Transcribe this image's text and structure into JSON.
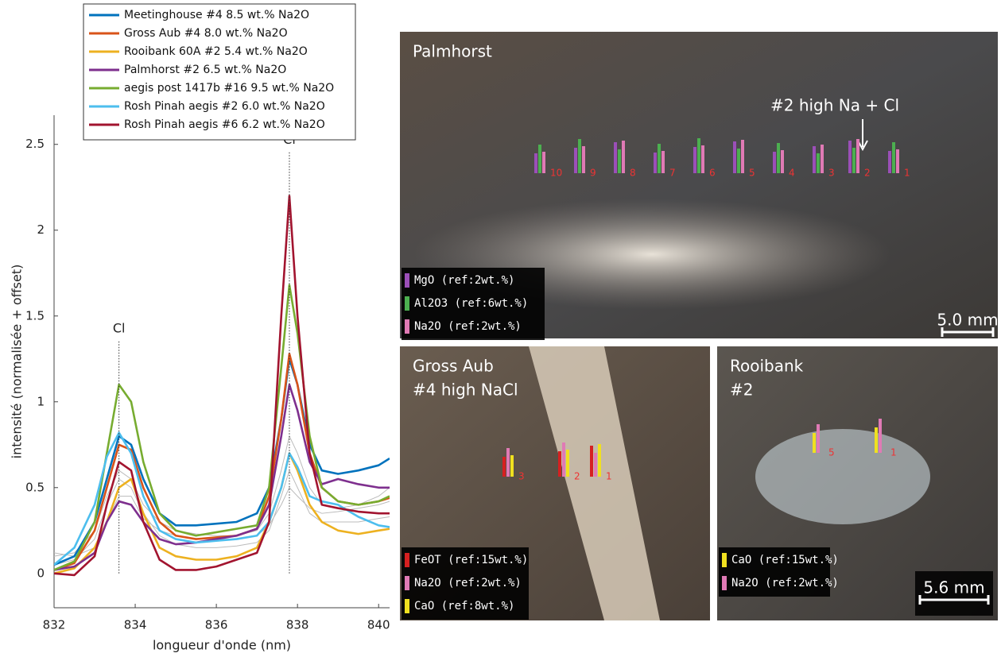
{
  "chart_data": {
    "type": "line",
    "xlabel": "longueur d'onde (nm)",
    "ylabel": "intensité (normalisée + offset)",
    "xlim": [
      832,
      840.27
    ],
    "ylim": [
      -0.2,
      2.67
    ],
    "xticks": [
      832,
      834,
      836,
      838,
      840
    ],
    "yticks": [
      0,
      0.5,
      1,
      1.5,
      2,
      2.5
    ],
    "x": [
      832,
      832.5,
      833,
      833.3,
      833.6,
      833.9,
      834.2,
      834.6,
      835,
      835.5,
      836,
      836.5,
      837,
      837.3,
      837.6,
      837.8,
      838,
      838.3,
      838.6,
      839,
      839.5,
      840,
      840.27
    ],
    "annotations": [
      {
        "text": "Cl",
        "x": 833.6
      },
      {
        "text": "Cl",
        "x": 837.8
      }
    ],
    "series": [
      {
        "color": "#bbbbbb",
        "values": [
          0.1,
          0.12,
          0.25,
          0.45,
          0.6,
          0.55,
          0.4,
          0.3,
          0.25,
          0.23,
          0.22,
          0.22,
          0.25,
          0.35,
          0.6,
          0.8,
          0.7,
          0.5,
          0.4,
          0.38,
          0.4,
          0.45,
          0.5
        ]
      },
      {
        "color": "#bbbbbb",
        "values": [
          0.05,
          0.08,
          0.2,
          0.4,
          0.55,
          0.5,
          0.35,
          0.22,
          0.17,
          0.15,
          0.15,
          0.16,
          0.18,
          0.25,
          0.45,
          0.6,
          0.5,
          0.35,
          0.3,
          0.3,
          0.3,
          0.32,
          0.33
        ]
      },
      {
        "color": "#bbbbbb",
        "values": [
          0.12,
          0.1,
          0.15,
          0.3,
          0.45,
          0.45,
          0.32,
          0.25,
          0.22,
          0.2,
          0.2,
          0.2,
          0.22,
          0.28,
          0.4,
          0.5,
          0.45,
          0.38,
          0.35,
          0.36,
          0.38,
          0.4,
          0.42
        ]
      },
      {
        "name": "Meetinghouse #4 8.5 wt.% Na2O",
        "color": "#0072bd",
        "values": [
          0.05,
          0.1,
          0.3,
          0.55,
          0.8,
          0.75,
          0.55,
          0.35,
          0.28,
          0.28,
          0.29,
          0.3,
          0.35,
          0.5,
          0.9,
          1.25,
          1.1,
          0.75,
          0.6,
          0.58,
          0.6,
          0.63,
          0.67
        ]
      },
      {
        "name": "Gross Aub #4 8.0 wt.% Na2O",
        "color": "#d95319",
        "values": [
          0.02,
          0.06,
          0.25,
          0.5,
          0.75,
          0.72,
          0.5,
          0.3,
          0.22,
          0.2,
          0.21,
          0.22,
          0.26,
          0.45,
          0.9,
          1.28,
          1.1,
          0.7,
          0.5,
          0.42,
          0.4,
          0.42,
          0.44
        ]
      },
      {
        "name": "Rooibank 60A #2 5.4 wt.% Na2O",
        "color": "#edb120",
        "values": [
          0.0,
          0.03,
          0.15,
          0.3,
          0.5,
          0.55,
          0.35,
          0.15,
          0.1,
          0.08,
          0.08,
          0.1,
          0.15,
          0.3,
          0.5,
          0.7,
          0.6,
          0.4,
          0.3,
          0.25,
          0.23,
          0.25,
          0.26
        ]
      },
      {
        "name": "Palmhorst #2 6.5 wt.% Na2O",
        "color": "#7e2f8e",
        "values": [
          0.02,
          0.04,
          0.12,
          0.3,
          0.42,
          0.4,
          0.3,
          0.2,
          0.17,
          0.18,
          0.2,
          0.22,
          0.26,
          0.4,
          0.8,
          1.1,
          0.95,
          0.65,
          0.52,
          0.55,
          0.52,
          0.5,
          0.5
        ]
      },
      {
        "name": "aegis post 1417b #16 9.5 wt.% Na2O",
        "color": "#77ac30",
        "values": [
          0.02,
          0.07,
          0.3,
          0.7,
          1.1,
          1.0,
          0.65,
          0.35,
          0.25,
          0.22,
          0.24,
          0.26,
          0.28,
          0.5,
          1.2,
          1.68,
          1.4,
          0.8,
          0.5,
          0.42,
          0.4,
          0.42,
          0.45
        ]
      },
      {
        "name": "Rosh Pinah aegis #2 6.0 wt.% Na2O",
        "color": "#4dbeee",
        "values": [
          0.05,
          0.15,
          0.4,
          0.68,
          0.82,
          0.7,
          0.45,
          0.25,
          0.2,
          0.18,
          0.19,
          0.2,
          0.22,
          0.3,
          0.5,
          0.7,
          0.62,
          0.45,
          0.42,
          0.4,
          0.33,
          0.28,
          0.27
        ]
      },
      {
        "name": "Rosh Pinah aegis #6 6.2 wt.% Na2O",
        "color": "#a2142f",
        "values": [
          0.0,
          -0.01,
          0.1,
          0.4,
          0.65,
          0.6,
          0.3,
          0.08,
          0.02,
          0.02,
          0.04,
          0.08,
          0.12,
          0.3,
          1.5,
          2.2,
          1.5,
          0.7,
          0.4,
          0.38,
          0.36,
          0.35,
          0.35
        ]
      }
    ]
  },
  "panels": [
    {
      "title": [
        "Palmhorst"
      ],
      "note": "#2 high Na + Cl",
      "legend": [
        {
          "text": "MgO (ref:2wt.%)",
          "color": "#9b4fb8"
        },
        {
          "text": "Al2O3 (ref:6wt.%)",
          "color": "#4caf50"
        },
        {
          "text": "Na2O (ref:2wt.%)",
          "color": "#e07ab5"
        }
      ],
      "points": [
        "10",
        "9",
        "8",
        "7",
        "6",
        "5",
        "4",
        "3",
        "2",
        "1"
      ],
      "scale": "5.0 mm"
    },
    {
      "title": [
        "Gross Aub",
        "#4 high NaCl"
      ],
      "legend": [
        {
          "text": "FeOT (ref:15wt.%)",
          "color": "#d62020"
        },
        {
          "text": "Na2O (ref:2wt.%)",
          "color": "#e07ab5"
        },
        {
          "text": "CaO (ref:8wt.%)",
          "color": "#f0e020"
        }
      ],
      "points": [
        "3",
        "2",
        "1"
      ]
    },
    {
      "title": [
        "Rooibank",
        "#2"
      ],
      "legend": [
        {
          "text": "CaO (ref:15wt.%)",
          "color": "#f0e020"
        },
        {
          "text": "Na2O (ref:2wt.%)",
          "color": "#e07ab5"
        }
      ],
      "points": [
        "5",
        "1"
      ],
      "scale": "5.6 mm"
    }
  ]
}
